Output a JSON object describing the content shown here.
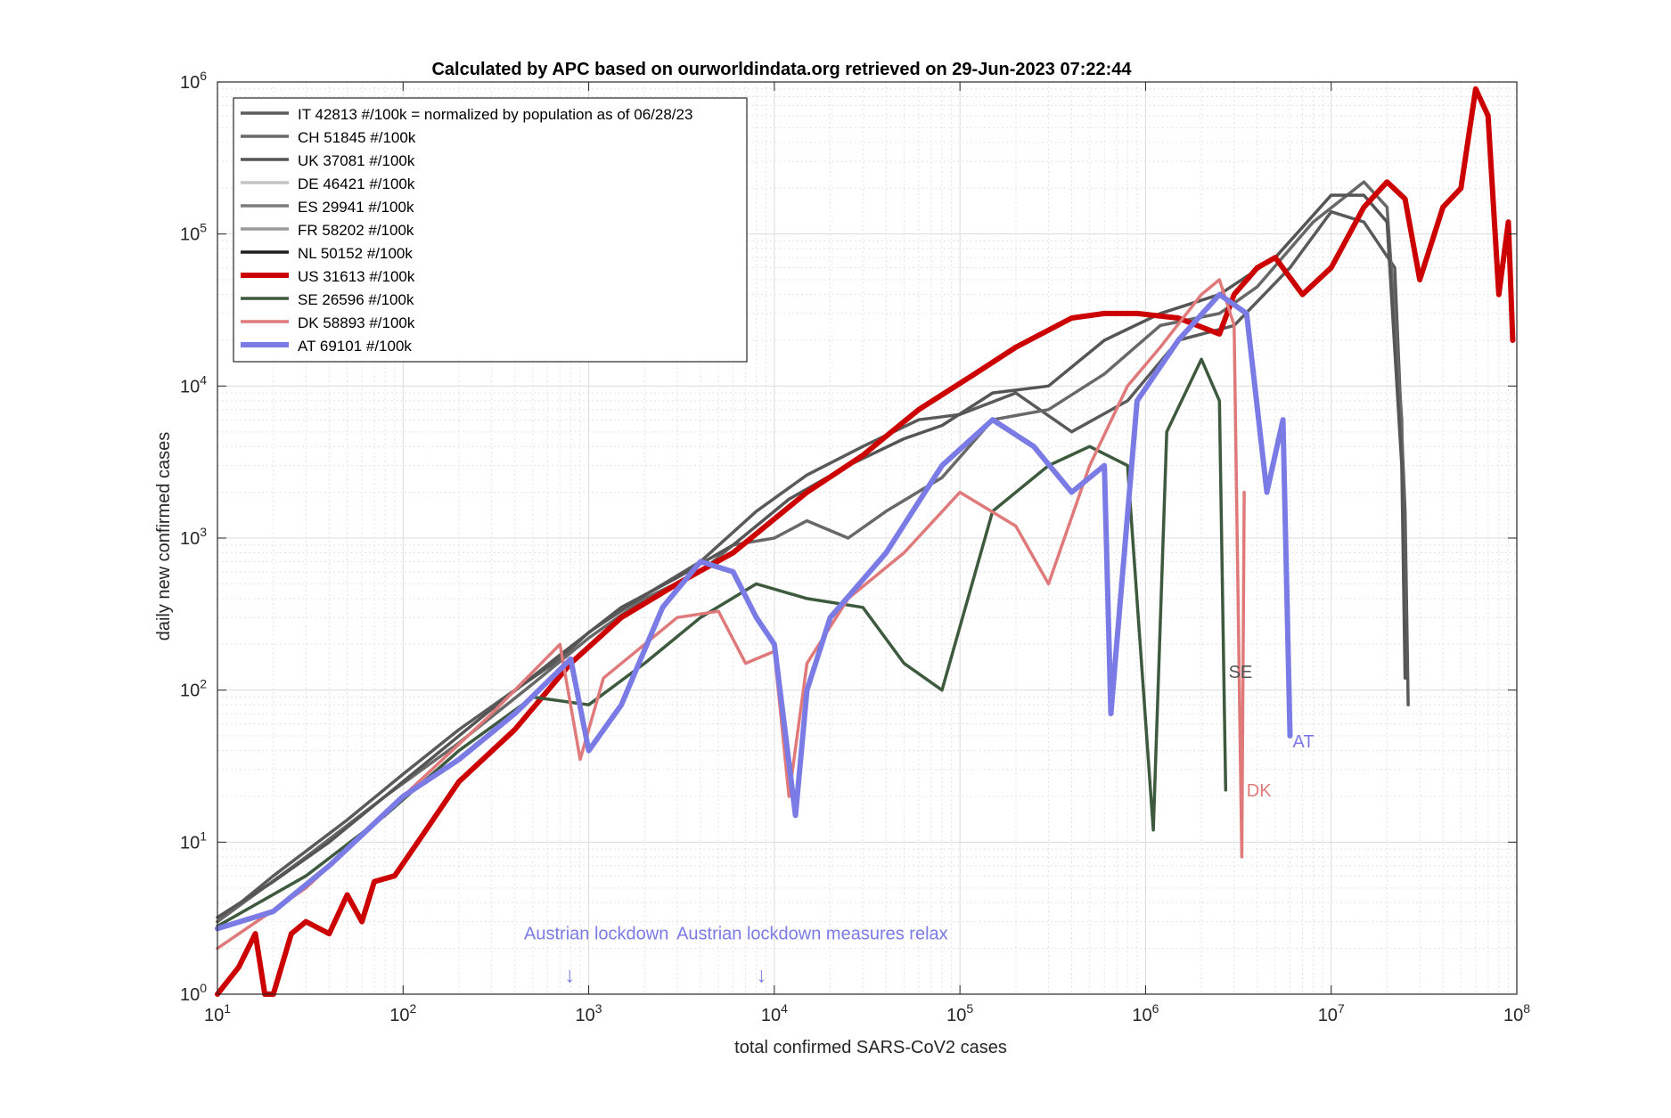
{
  "chart_data": {
    "type": "line",
    "title": "Calculated by APC based on ourworldindata.org retrieved on 29-Jun-2023 07:22:44",
    "xlabel": "total confirmed SARS-CoV2 cases",
    "ylabel": "daily new confirmed cases",
    "xscale": "log",
    "yscale": "log",
    "xlim": [
      10,
      100000000
    ],
    "ylim": [
      1,
      1000000
    ],
    "grid": true,
    "minor_grid": true,
    "legend_position": "top-left",
    "x_ticks": [
      {
        "value": 10,
        "base": "10",
        "exp": "1"
      },
      {
        "value": 100,
        "base": "10",
        "exp": "2"
      },
      {
        "value": 1000,
        "base": "10",
        "exp": "3"
      },
      {
        "value": 10000,
        "base": "10",
        "exp": "4"
      },
      {
        "value": 100000,
        "base": "10",
        "exp": "5"
      },
      {
        "value": 1000000,
        "base": "10",
        "exp": "6"
      },
      {
        "value": 10000000,
        "base": "10",
        "exp": "7"
      },
      {
        "value": 100000000,
        "base": "10",
        "exp": "8"
      }
    ],
    "y_ticks": [
      {
        "value": 1,
        "base": "10",
        "exp": "0"
      },
      {
        "value": 10,
        "base": "10",
        "exp": "1"
      },
      {
        "value": 100,
        "base": "10",
        "exp": "2"
      },
      {
        "value": 1000,
        "base": "10",
        "exp": "3"
      },
      {
        "value": 10000,
        "base": "10",
        "exp": "4"
      },
      {
        "value": 100000,
        "base": "10",
        "exp": "5"
      },
      {
        "value": 1000000,
        "base": "10",
        "exp": "6"
      }
    ],
    "legend_suffix": " normalized by population as of  06/28/23",
    "series": [
      {
        "name": "IT 42813 #/100k = ",
        "color": "#5a5a5a",
        "width": 3.5,
        "points": [
          [
            10,
            3.0
          ],
          [
            20,
            6.0
          ],
          [
            50,
            14
          ],
          [
            100,
            28
          ],
          [
            200,
            55
          ],
          [
            400,
            100
          ],
          [
            700,
            160
          ],
          [
            1000,
            240
          ],
          [
            2000,
            420
          ],
          [
            4000,
            700
          ],
          [
            8000,
            1500
          ],
          [
            15000,
            2600
          ],
          [
            30000,
            4000
          ],
          [
            60000,
            6000
          ],
          [
            100000,
            6500
          ],
          [
            200000,
            9000
          ],
          [
            400000,
            5000
          ],
          [
            800000,
            8000
          ],
          [
            1500000,
            20000
          ],
          [
            3000000,
            25000
          ],
          [
            6000000,
            60000
          ],
          [
            10000000,
            140000
          ],
          [
            15000000,
            120000
          ],
          [
            22000000,
            60000
          ],
          [
            25000000,
            1500
          ],
          [
            26000000,
            80
          ]
        ]
      },
      {
        "name": "CH 51845 #/100k",
        "color": "#686868",
        "width": 3.5,
        "points": [
          [
            10,
            3.0
          ],
          [
            30,
            8
          ],
          [
            80,
            20
          ],
          [
            200,
            45
          ],
          [
            500,
            110
          ],
          [
            1000,
            220
          ],
          [
            2000,
            400
          ],
          [
            4000,
            600
          ],
          [
            6000,
            900
          ],
          [
            10000,
            1000
          ],
          [
            15000,
            1300
          ],
          [
            25000,
            1000
          ],
          [
            40000,
            1500
          ],
          [
            80000,
            2500
          ],
          [
            150000,
            6000
          ],
          [
            300000,
            7000
          ],
          [
            600000,
            12000
          ],
          [
            1200000,
            25000
          ],
          [
            2500000,
            30000
          ],
          [
            4000000,
            45000
          ],
          [
            8000000,
            120000
          ],
          [
            15000000,
            220000
          ],
          [
            20000000,
            150000
          ],
          [
            24000000,
            6000
          ],
          [
            25000000,
            300
          ]
        ]
      },
      {
        "name": "UK 37081 #/100k",
        "color": "#555555",
        "width": 3.5,
        "points": [
          [
            10,
            3.2
          ],
          [
            20,
            5.5
          ],
          [
            40,
            10
          ],
          [
            100,
            25
          ],
          [
            300,
            75
          ],
          [
            700,
            170
          ],
          [
            1500,
            350
          ],
          [
            3000,
            550
          ],
          [
            6000,
            900
          ],
          [
            12000,
            1800
          ],
          [
            25000,
            3000
          ],
          [
            50000,
            4500
          ],
          [
            80000,
            5500
          ],
          [
            150000,
            9000
          ],
          [
            300000,
            10000
          ],
          [
            600000,
            20000
          ],
          [
            1200000,
            30000
          ],
          [
            2500000,
            40000
          ],
          [
            5000000,
            70000
          ],
          [
            10000000,
            180000
          ],
          [
            15000000,
            180000
          ],
          [
            20000000,
            120000
          ],
          [
            24000000,
            3000
          ],
          [
            25000000,
            120
          ]
        ]
      },
      {
        "name": "DE 46421 #/100k",
        "color": "#c4c4c4",
        "width": 3.5,
        "points": []
      },
      {
        "name": "ES 29941 #/100k",
        "color": "#7c7c7c",
        "width": 3.5,
        "points": []
      },
      {
        "name": "FR 58202 #/100k",
        "color": "#9a9a9a",
        "width": 3.5,
        "points": []
      },
      {
        "name": "NL 50152 #/100k",
        "color": "#1e1e1e",
        "width": 3.5,
        "points": []
      },
      {
        "name": "US 31613 #/100k",
        "color": "#cc0000",
        "width": 6,
        "points": [
          [
            10,
            1.0
          ],
          [
            13,
            1.5
          ],
          [
            16,
            2.5
          ],
          [
            18,
            1.0
          ],
          [
            20,
            1.0
          ],
          [
            25,
            2.5
          ],
          [
            30,
            3.0
          ],
          [
            40,
            2.5
          ],
          [
            50,
            4.5
          ],
          [
            60,
            3.0
          ],
          [
            70,
            5.5
          ],
          [
            90,
            6.0
          ],
          [
            120,
            10
          ],
          [
            200,
            25
          ],
          [
            400,
            55
          ],
          [
            800,
            150
          ],
          [
            1500,
            300
          ],
          [
            3000,
            500
          ],
          [
            6000,
            800
          ],
          [
            15000,
            2000
          ],
          [
            30000,
            3500
          ],
          [
            60000,
            7000
          ],
          [
            120000,
            12000
          ],
          [
            200000,
            18000
          ],
          [
            400000,
            28000
          ],
          [
            600000,
            30000
          ],
          [
            900000,
            30000
          ],
          [
            1500000,
            28000
          ],
          [
            2500000,
            22000
          ],
          [
            3000000,
            40000
          ],
          [
            4000000,
            60000
          ],
          [
            5000000,
            70000
          ],
          [
            7000000,
            40000
          ],
          [
            10000000,
            60000
          ],
          [
            15000000,
            150000
          ],
          [
            20000000,
            220000
          ],
          [
            25000000,
            170000
          ],
          [
            30000000,
            50000
          ],
          [
            40000000,
            150000
          ],
          [
            50000000,
            200000
          ],
          [
            60000000,
            900000
          ],
          [
            70000000,
            600000
          ],
          [
            80000000,
            40000
          ],
          [
            90000000,
            120000
          ],
          [
            95000000,
            20000
          ]
        ]
      },
      {
        "name": "SE 26596 #/100k",
        "color": "#3e5a3e",
        "width": 3.5,
        "points": [
          [
            10,
            2.8
          ],
          [
            30,
            6
          ],
          [
            80,
            15
          ],
          [
            200,
            40
          ],
          [
            500,
            90
          ],
          [
            1000,
            80
          ],
          [
            2000,
            150
          ],
          [
            4000,
            300
          ],
          [
            8000,
            500
          ],
          [
            15000,
            400
          ],
          [
            30000,
            350
          ],
          [
            50000,
            150
          ],
          [
            80000,
            100
          ],
          [
            150000,
            1500
          ],
          [
            300000,
            3000
          ],
          [
            500000,
            4000
          ],
          [
            800000,
            3000
          ],
          [
            1100000,
            12
          ],
          [
            1300000,
            5000
          ],
          [
            2000000,
            15000
          ],
          [
            2500000,
            8000
          ],
          [
            2700000,
            22
          ]
        ]
      },
      {
        "name": "DK 58893 #/100k",
        "color": "#e07a7a",
        "width": 3.5,
        "points": [
          [
            10,
            2.0
          ],
          [
            30,
            5
          ],
          [
            100,
            20
          ],
          [
            300,
            70
          ],
          [
            700,
            200
          ],
          [
            900,
            35
          ],
          [
            1200,
            120
          ],
          [
            2000,
            200
          ],
          [
            3000,
            300
          ],
          [
            5000,
            330
          ],
          [
            7000,
            150
          ],
          [
            10000,
            180
          ],
          [
            12000,
            20
          ],
          [
            15000,
            150
          ],
          [
            25000,
            400
          ],
          [
            50000,
            800
          ],
          [
            100000,
            2000
          ],
          [
            200000,
            1200
          ],
          [
            300000,
            500
          ],
          [
            500000,
            3000
          ],
          [
            800000,
            10000
          ],
          [
            1200000,
            18000
          ],
          [
            2000000,
            40000
          ],
          [
            2500000,
            50000
          ],
          [
            3000000,
            25000
          ],
          [
            3300000,
            8
          ],
          [
            3400000,
            2000
          ]
        ]
      },
      {
        "name": "AT 69101 #/100k",
        "color": "#7b7be6",
        "width": 6,
        "points": [
          [
            10,
            2.7
          ],
          [
            20,
            3.5
          ],
          [
            40,
            7
          ],
          [
            100,
            20
          ],
          [
            200,
            35
          ],
          [
            400,
            70
          ],
          [
            800,
            160
          ],
          [
            1000,
            40
          ],
          [
            1500,
            80
          ],
          [
            2500,
            350
          ],
          [
            4000,
            700
          ],
          [
            6000,
            600
          ],
          [
            8000,
            300
          ],
          [
            10000,
            200
          ],
          [
            13000,
            15
          ],
          [
            15000,
            100
          ],
          [
            20000,
            300
          ],
          [
            40000,
            800
          ],
          [
            80000,
            3000
          ],
          [
            150000,
            6000
          ],
          [
            250000,
            4000
          ],
          [
            400000,
            2000
          ],
          [
            600000,
            3000
          ],
          [
            650000,
            70
          ],
          [
            900000,
            8000
          ],
          [
            1500000,
            20000
          ],
          [
            2500000,
            40000
          ],
          [
            3500000,
            30000
          ],
          [
            4500000,
            2000
          ],
          [
            5500000,
            6000
          ],
          [
            6000000,
            50
          ]
        ]
      }
    ],
    "annotations": [
      {
        "text": "SE",
        "x": 2800000,
        "y": 120,
        "color": "#555555"
      },
      {
        "text": "DK",
        "x": 3500000,
        "y": 20,
        "color": "#e07a7a"
      },
      {
        "text": "AT",
        "x": 6200000,
        "y": 42,
        "color": "#7b7be6"
      },
      {
        "text": "Austrian lockdown",
        "x": 1100,
        "y": 2.3,
        "color": "#7b7be6",
        "arrow": true
      },
      {
        "text": "Austrian lockdown measures relax",
        "x": 16000,
        "y": 2.3,
        "color": "#7b7be6",
        "arrow": true
      }
    ]
  }
}
